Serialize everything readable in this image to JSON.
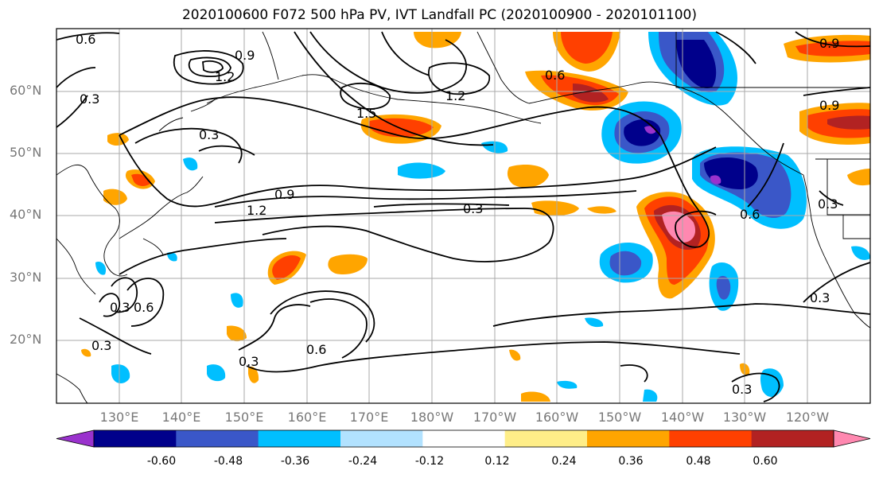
{
  "title": "2020100600 F072 500 hPa PV, IVT Landfall PC (2020100900 - 2020101100)",
  "lat_ticks": [
    "60°N",
    "50°N",
    "40°N",
    "30°N",
    "20°N"
  ],
  "lon_ticks": [
    "130°E",
    "140°E",
    "150°E",
    "160°E",
    "170°E",
    "180°W",
    "170°W",
    "160°W",
    "150°W",
    "140°W",
    "130°W",
    "120°W"
  ],
  "colorbar": {
    "colors": [
      "#9a32cd",
      "#00008b",
      "#3a57c8",
      "#00bfff",
      "#b2e2ff",
      "#ffffff",
      "#ffee88",
      "#ffa500",
      "#ff4000",
      "#b22222",
      "#ff88b0"
    ],
    "labels": [
      "-0.60",
      "-0.48",
      "-0.36",
      "-0.24",
      "-0.12",
      "0.12",
      "0.24",
      "0.36",
      "0.48",
      "0.60"
    ]
  },
  "contour_labels": [
    "0.6",
    "0.9",
    "1.2",
    "0.3",
    "1.5",
    "1.2",
    "0.3",
    "0.9",
    "1.2",
    "0.3",
    "0.6",
    "0.9",
    "0.9",
    "0.6",
    "0.3",
    "0.3",
    "0.3",
    "0.3",
    "0.6",
    "0.6",
    "0.3",
    "0.3"
  ]
}
